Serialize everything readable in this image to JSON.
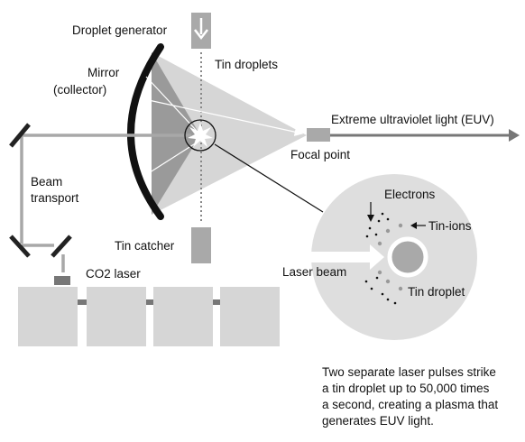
{
  "labels": {
    "droplet_generator": "Droplet generator",
    "tin_droplets": "Tin droplets",
    "mirror_line1": "Mirror",
    "mirror_line2": "(collector)",
    "euv_light": "Extreme ultraviolet light (EUV)",
    "focal_point": "Focal point",
    "beam_line1": "Beam",
    "beam_line2": "transport",
    "tin_catcher": "Tin catcher",
    "co2_laser": "CO2 laser",
    "electrons": "Electrons",
    "tin_ions": "Tin-ions",
    "laser_beam": "Laser beam",
    "tin_droplet": "Tin droplet"
  },
  "caption": {
    "line1": "Two separate laser pulses strike",
    "line2": "a tin droplet up to 50,000 times",
    "line3": "a second, creating a plasma that",
    "line4": "generates EUV light."
  }
}
